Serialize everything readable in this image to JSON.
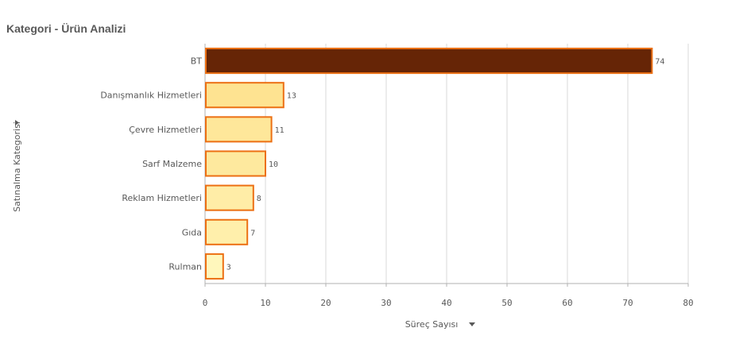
{
  "title": "Kategori - Ürün Analizi",
  "chart_data": {
    "type": "bar",
    "orientation": "horizontal",
    "categories": [
      "BT",
      "Danışmanlık Hizmetleri",
      "Çevre Hizmetleri",
      "Sarf Malzeme",
      "Reklam Hizmetleri",
      "Gıda",
      "Rulman"
    ],
    "values": [
      74,
      13,
      11,
      10,
      8,
      7,
      3
    ],
    "xlabel": "Süreç Sayısı",
    "ylabel": "Satınalma Kategorisi",
    "xlim": [
      0,
      80
    ],
    "xticks": [
      0,
      10,
      20,
      30,
      40,
      50,
      60,
      70,
      80
    ],
    "grid": true,
    "colors": {
      "highlight_fill": "#662506",
      "bar_fill_max": "#fee391",
      "bar_fill_min": "#fff7bc",
      "bar_stroke": "#ec7014",
      "grid": "#d9d9d9",
      "axis": "#b0b0b0"
    }
  }
}
